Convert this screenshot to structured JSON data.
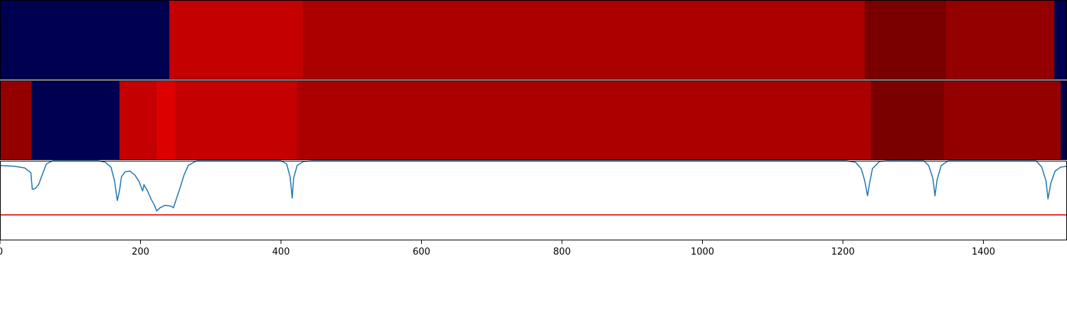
{
  "chart_data": {
    "type": "heatmap",
    "xlim": [
      0,
      1519
    ],
    "xticks": [
      0,
      200,
      400,
      600,
      800,
      1000,
      1200,
      1400
    ],
    "xtick_labels": [
      "0",
      "200",
      "400",
      "600",
      "800",
      "1000",
      "1200",
      "1400"
    ],
    "colors": {
      "background_segment": "#000050",
      "threshold_line": "#e60000",
      "signal_line": "#1f77b4",
      "axis": "#000000"
    },
    "tracks": [
      {
        "segments": [
          {
            "start": 0,
            "end": 241,
            "color": "#000050"
          },
          {
            "start": 241,
            "end": 431,
            "color": "#c40000"
          },
          {
            "start": 431,
            "end": 1231,
            "color": "#aa0000"
          },
          {
            "start": 1231,
            "end": 1347,
            "color": "#7a0000"
          },
          {
            "start": 1347,
            "end": 1501,
            "color": "#940000"
          },
          {
            "start": 1501,
            "end": 1519,
            "color": "#000050"
          }
        ]
      },
      {
        "segments": [
          {
            "start": 0,
            "end": 45,
            "color": "#940000"
          },
          {
            "start": 45,
            "end": 170,
            "color": "#000050"
          },
          {
            "start": 170,
            "end": 223,
            "color": "#c40000"
          },
          {
            "start": 223,
            "end": 250,
            "color": "#dc0000"
          },
          {
            "start": 250,
            "end": 423,
            "color": "#c40000"
          },
          {
            "start": 423,
            "end": 1240,
            "color": "#aa0000"
          },
          {
            "start": 1240,
            "end": 1344,
            "color": "#7a0000"
          },
          {
            "start": 1344,
            "end": 1510,
            "color": "#940000"
          },
          {
            "start": 1510,
            "end": 1519,
            "color": "#000050"
          }
        ]
      }
    ],
    "signal": {
      "ylim": [
        0,
        1
      ],
      "threshold": 0.32,
      "points": [
        [
          0,
          0.94
        ],
        [
          20,
          0.93
        ],
        [
          35,
          0.91
        ],
        [
          44,
          0.85
        ],
        [
          46,
          0.64
        ],
        [
          50,
          0.65
        ],
        [
          55,
          0.7
        ],
        [
          60,
          0.82
        ],
        [
          66,
          0.96
        ],
        [
          75,
          1.0
        ],
        [
          140,
          1.0
        ],
        [
          150,
          0.98
        ],
        [
          158,
          0.92
        ],
        [
          163,
          0.75
        ],
        [
          167,
          0.5
        ],
        [
          170,
          0.62
        ],
        [
          173,
          0.8
        ],
        [
          178,
          0.86
        ],
        [
          185,
          0.87
        ],
        [
          192,
          0.82
        ],
        [
          198,
          0.74
        ],
        [
          203,
          0.62
        ],
        [
          205,
          0.7
        ],
        [
          210,
          0.62
        ],
        [
          215,
          0.52
        ],
        [
          220,
          0.44
        ],
        [
          223,
          0.37
        ],
        [
          228,
          0.41
        ],
        [
          235,
          0.44
        ],
        [
          243,
          0.43
        ],
        [
          247,
          0.41
        ],
        [
          251,
          0.52
        ],
        [
          256,
          0.65
        ],
        [
          262,
          0.82
        ],
        [
          268,
          0.94
        ],
        [
          280,
          1.0
        ],
        [
          400,
          1.0
        ],
        [
          408,
          0.96
        ],
        [
          413,
          0.8
        ],
        [
          416,
          0.53
        ],
        [
          418,
          0.78
        ],
        [
          423,
          0.94
        ],
        [
          432,
          0.99
        ],
        [
          445,
          1.0
        ],
        [
          1205,
          1.0
        ],
        [
          1218,
          0.98
        ],
        [
          1226,
          0.9
        ],
        [
          1231,
          0.75
        ],
        [
          1235,
          0.56
        ],
        [
          1238,
          0.72
        ],
        [
          1242,
          0.9
        ],
        [
          1252,
          0.99
        ],
        [
          1262,
          1.0
        ],
        [
          1315,
          1.0
        ],
        [
          1322,
          0.94
        ],
        [
          1328,
          0.78
        ],
        [
          1331,
          0.56
        ],
        [
          1334,
          0.76
        ],
        [
          1340,
          0.94
        ],
        [
          1350,
          1.0
        ],
        [
          1475,
          1.0
        ],
        [
          1483,
          0.92
        ],
        [
          1489,
          0.75
        ],
        [
          1492,
          0.52
        ],
        [
          1496,
          0.72
        ],
        [
          1502,
          0.87
        ],
        [
          1510,
          0.92
        ],
        [
          1519,
          0.93
        ]
      ]
    }
  }
}
